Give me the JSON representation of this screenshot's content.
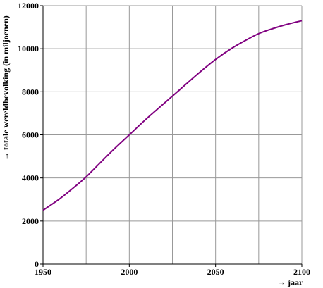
{
  "chart_data": {
    "type": "line",
    "title": "",
    "xlabel": "→ jaar",
    "ylabel": "→ totale wereldbevolking (in miljoenen)",
    "xlim": [
      1950,
      2100
    ],
    "ylim": [
      0,
      12000
    ],
    "x_ticks": [
      "1950",
      "2000",
      "2050",
      "2100"
    ],
    "x_grid": [
      1950,
      1975,
      2000,
      2025,
      2050,
      2075,
      2100
    ],
    "y_ticks": [
      "0",
      "2000",
      "4000",
      "6000",
      "8000",
      "10000",
      "12000"
    ],
    "grid": true,
    "legend": "none",
    "line_color": "#800080",
    "series": [
      {
        "x": [
          1950,
          1960,
          1970,
          1975,
          1980,
          1990,
          2000,
          2010,
          2020,
          2025,
          2030,
          2040,
          2050,
          2060,
          2070,
          2075,
          2080,
          2090,
          2100
        ],
        "values": [
          2500,
          3050,
          3700,
          4050,
          4450,
          5250,
          6000,
          6750,
          7450,
          7800,
          8150,
          8850,
          9500,
          10050,
          10500,
          10700,
          10850,
          11100,
          11300
        ]
      }
    ]
  }
}
